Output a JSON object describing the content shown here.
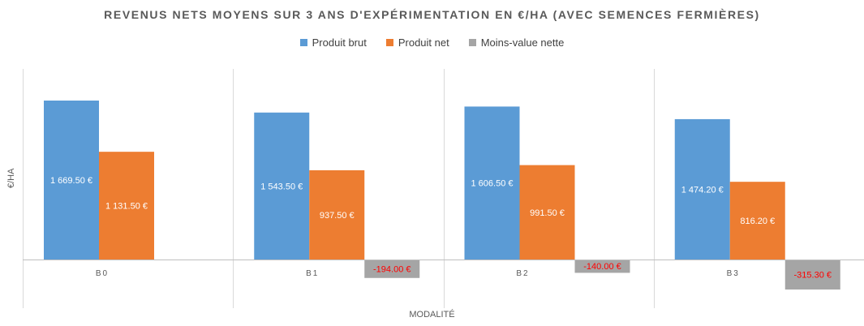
{
  "chart_data": {
    "type": "bar",
    "title": "REVENUS NETS MOYENS SUR 3 ANS D'EXPÉRIMENTATION EN €/HA (AVEC SEMENCES FERMIÈRES)",
    "xlabel": "MODALITÉ",
    "ylabel": "€/HA",
    "categories": [
      "B0",
      "B1",
      "B2",
      "B3"
    ],
    "series": [
      {
        "name": "Produit brut",
        "color": "#5B9BD5",
        "label_color": "#ffffff",
        "values": [
          1669.5,
          1543.5,
          1606.5,
          1474.2
        ],
        "labels": [
          "1 669.50 €",
          "1 543.50 €",
          "1 606.50 €",
          "1 474.20 €"
        ]
      },
      {
        "name": "Produit net",
        "color": "#ED7D31",
        "label_color": "#ffffff",
        "values": [
          1131.5,
          937.5,
          991.5,
          816.2
        ],
        "labels": [
          "1 131.50 €",
          "937.50 €",
          "991.50 €",
          "816.20 €"
        ]
      },
      {
        "name": "Moins-value nette",
        "color": "#A5A5A5",
        "label_color": "#FF0000",
        "values": [
          null,
          -194.0,
          -140.0,
          -315.3
        ],
        "labels": [
          "",
          "-194.00 €",
          "-140.00 €",
          "-315.30 €"
        ]
      }
    ],
    "ylim": [
      -330,
      1700
    ],
    "grid": false,
    "legend_position": "top"
  }
}
